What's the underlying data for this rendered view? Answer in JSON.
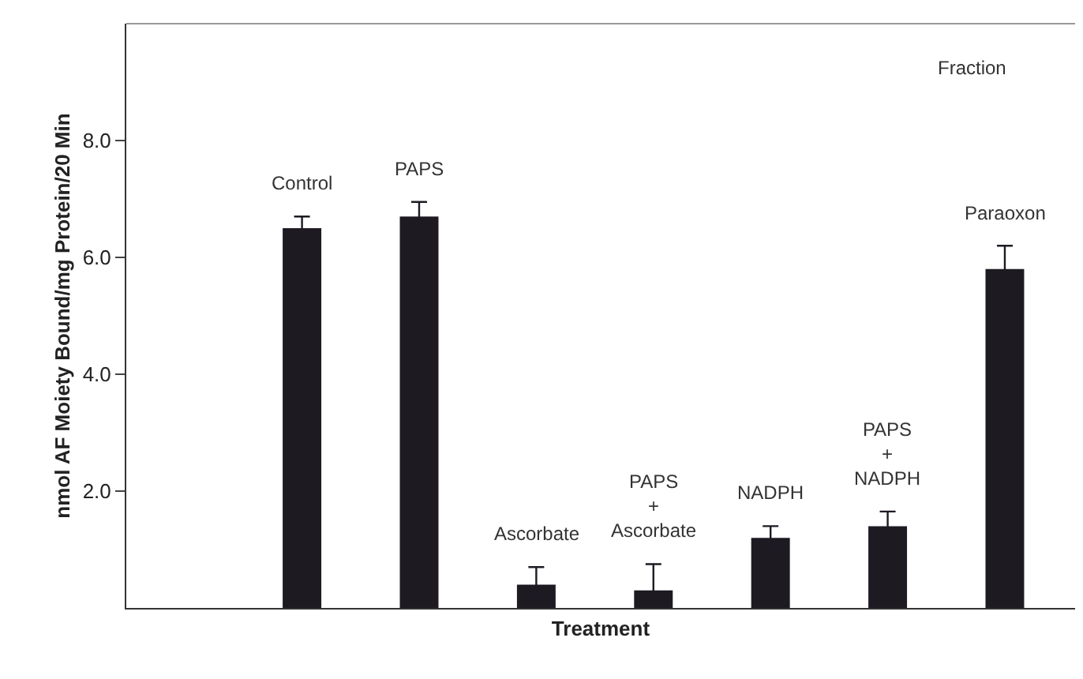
{
  "chart_data": {
    "type": "bar",
    "title": "Fraction",
    "xlabel": "Treatment",
    "ylabel": "nmol AF Moiety Bound/mg Protein/20 Min",
    "categories": [
      "Control",
      "PAPS",
      "Ascorbate",
      "PAPS\n+\nAscorbate",
      "NADPH",
      "PAPS\n+\nNADPH",
      "Paraoxon"
    ],
    "values": [
      6.5,
      6.7,
      0.4,
      0.3,
      1.2,
      1.4,
      5.8
    ],
    "errors": [
      0.2,
      0.25,
      0.3,
      0.45,
      0.2,
      0.25,
      0.4
    ],
    "color": "#1e1a22",
    "ylim": [
      0,
      10
    ],
    "yticks": [
      {
        "value": 2,
        "label": "2.0"
      },
      {
        "value": 4,
        "label": "4.0"
      },
      {
        "value": 6,
        "label": "6.0"
      },
      {
        "value": 8,
        "label": "8.0"
      }
    ],
    "grid": false
  }
}
